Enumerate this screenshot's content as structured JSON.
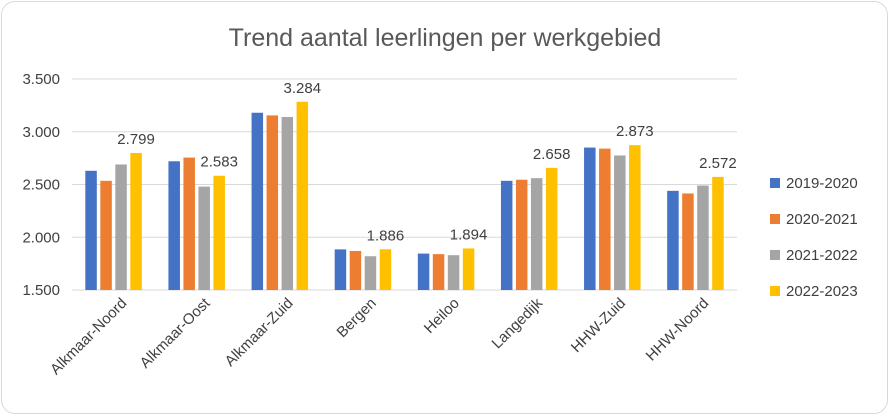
{
  "chart_data": {
    "type": "bar",
    "title": "Trend aantal leerlingen per werkgebied",
    "xlabel": "",
    "ylabel": "",
    "ylim": [
      1500,
      3500
    ],
    "yticks": [
      1500,
      2000,
      2500,
      3000,
      3500
    ],
    "ytick_labels": [
      "1.500",
      "2.000",
      "2.500",
      "3.000",
      "3.500"
    ],
    "grid": true,
    "legend_position": "right",
    "categories": [
      "Alkmaar-Noord",
      "Alkmaar-Oost",
      "Alkmaar-Zuid",
      "Bergen",
      "Heiloo",
      "Langedijk",
      "HHW-Zuid",
      "HHW-Noord"
    ],
    "series": [
      {
        "name": "2019-2020",
        "color": "#4472C4",
        "values": [
          2630,
          2720,
          3180,
          1885,
          1845,
          2535,
          2850,
          2440
        ]
      },
      {
        "name": "2020-2021",
        "color": "#ED7D31",
        "values": [
          2535,
          2755,
          3155,
          1870,
          1840,
          2545,
          2840,
          2415
        ]
      },
      {
        "name": "2021-2022",
        "color": "#A5A5A5",
        "values": [
          2690,
          2480,
          3140,
          1820,
          1830,
          2560,
          2775,
          2490
        ]
      },
      {
        "name": "2022-2023",
        "color": "#FFC000",
        "values": [
          2799,
          2583,
          3284,
          1886,
          1894,
          2658,
          2873,
          2572
        ]
      }
    ],
    "data_labels": {
      "series_index": 3,
      "labels": [
        "2.799",
        "2.583",
        "3.284",
        "1.886",
        "1.894",
        "2.658",
        "2.873",
        "2.572"
      ]
    }
  }
}
